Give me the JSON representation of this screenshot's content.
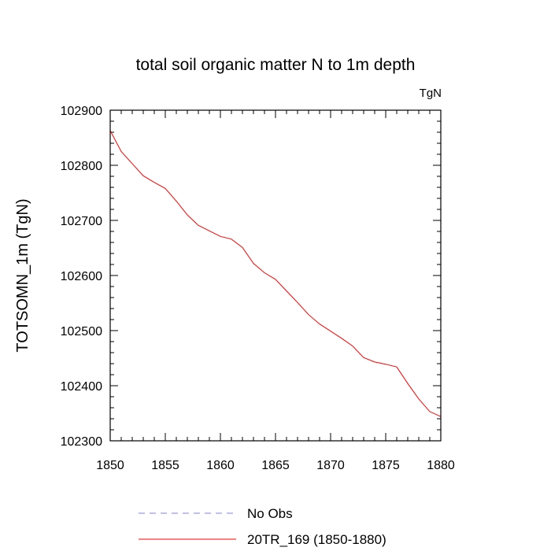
{
  "chart_data": {
    "type": "line",
    "title": "total soil organic matter N to 1m depth",
    "units_label": "TgN",
    "xlabel": "",
    "ylabel": "TOTSOMN_1m  (TgN)",
    "xlim": [
      1850,
      1880
    ],
    "ylim": [
      102300,
      102900
    ],
    "x_ticks": [
      1850,
      1855,
      1860,
      1865,
      1870,
      1875,
      1880
    ],
    "y_ticks": [
      102300,
      102400,
      102500,
      102600,
      102700,
      102800,
      102900
    ],
    "grid": false,
    "legend_position": "bottom",
    "series": [
      {
        "name": "No Obs",
        "color": "#7f7fff",
        "style": "dashed",
        "x": [],
        "y": []
      },
      {
        "name": "20TR_169 (1850-1880)",
        "color": "#ff0000",
        "style": "solid",
        "x": [
          1850,
          1851,
          1852,
          1853,
          1854,
          1855,
          1856,
          1857,
          1858,
          1859,
          1860,
          1861,
          1862,
          1863,
          1864,
          1865,
          1866,
          1867,
          1868,
          1869,
          1870,
          1871,
          1872,
          1873,
          1874,
          1875,
          1876,
          1877,
          1878,
          1879,
          1880
        ],
        "y": [
          102863,
          102825,
          102803,
          102781,
          102769,
          102758,
          102735,
          102710,
          102691,
          102681,
          102671,
          102666,
          102651,
          102622,
          102605,
          102593,
          102572,
          102551,
          102529,
          102512,
          102499,
          102486,
          102472,
          102451,
          102443,
          102439,
          102434,
          102404,
          102376,
          102353,
          102344
        ]
      }
    ]
  }
}
